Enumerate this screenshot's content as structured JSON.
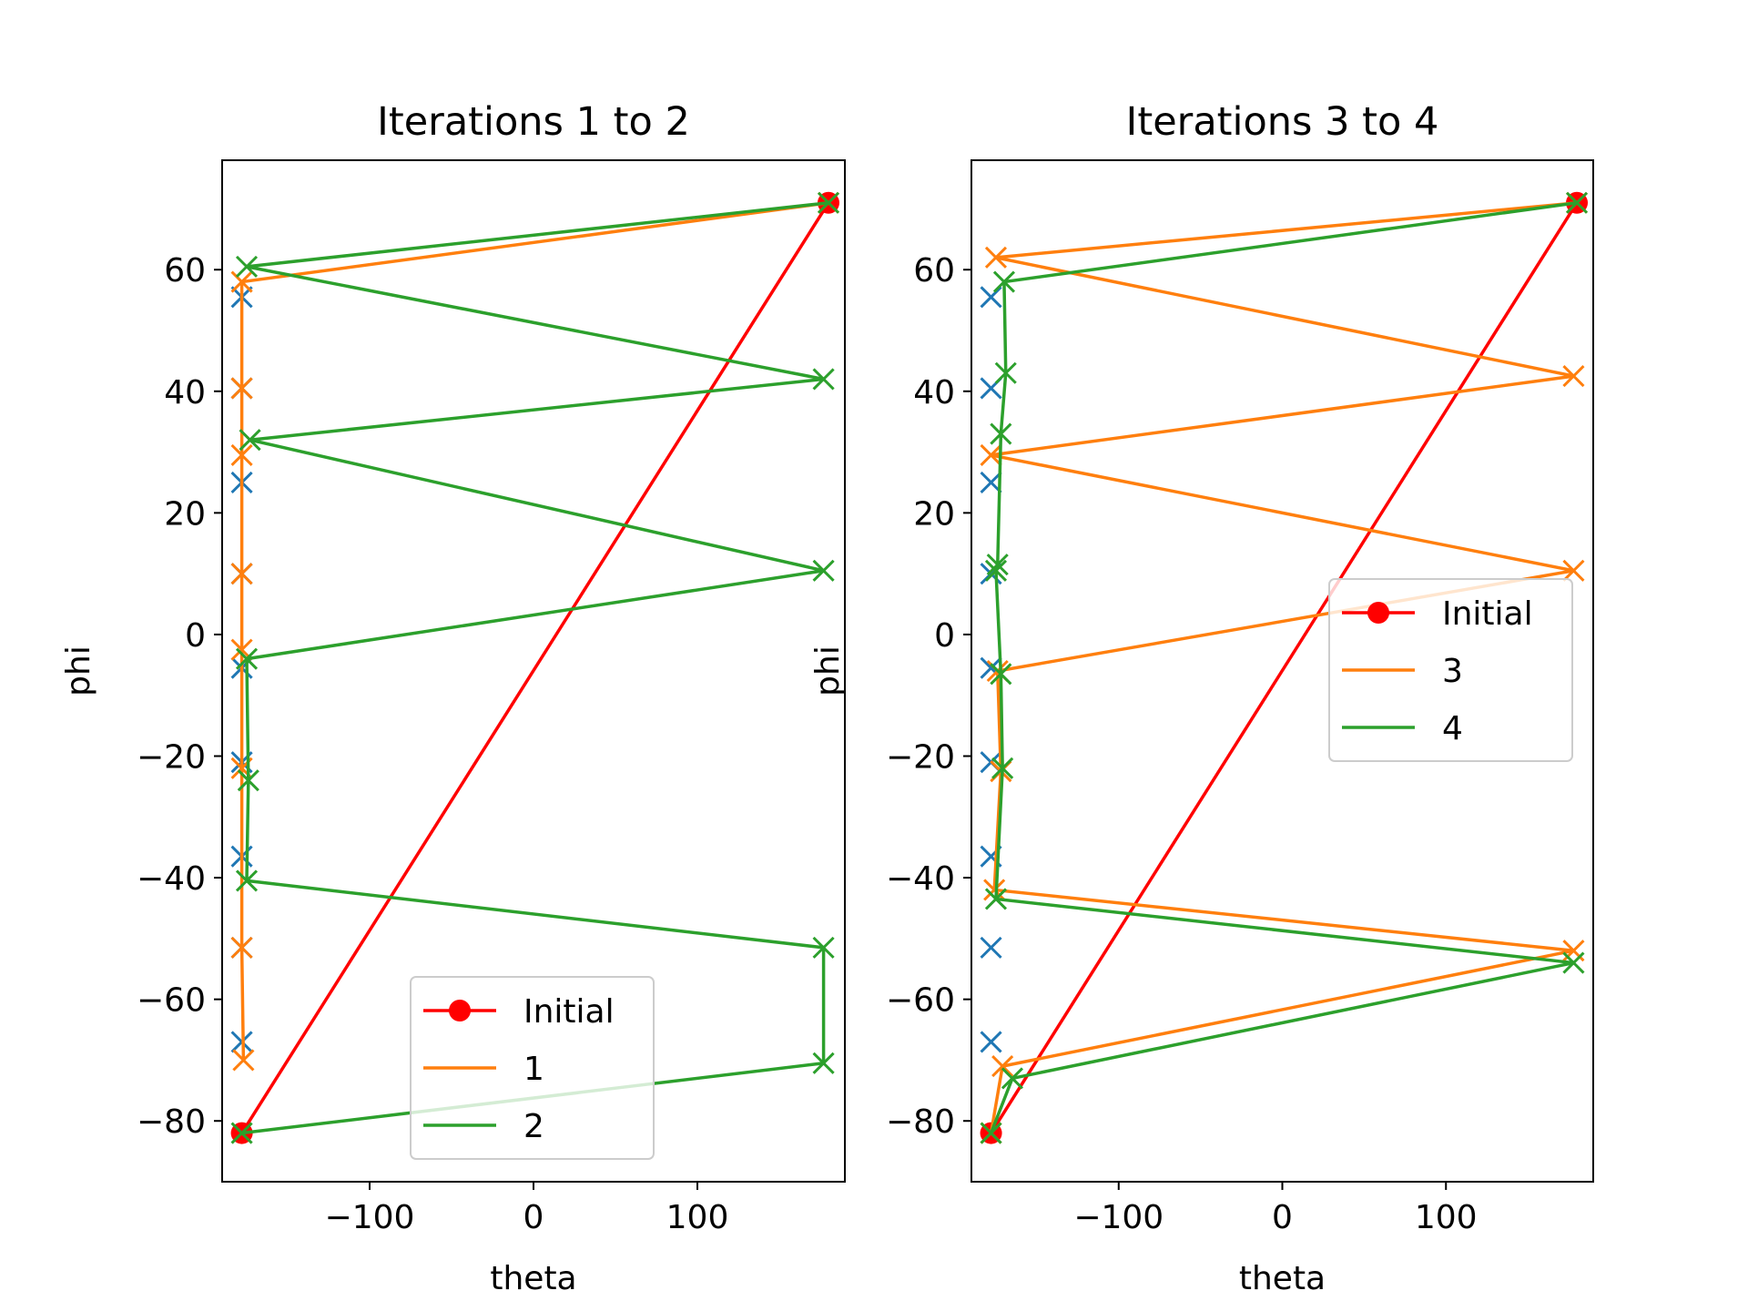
{
  "chart_data": [
    {
      "type": "line",
      "title": "Iterations 1 to 2",
      "xlabel": "theta",
      "ylabel": "phi",
      "xlim": [
        -190,
        190
      ],
      "ylim": [
        -90,
        78
      ],
      "xticks": [
        -100,
        0,
        100
      ],
      "xtick_labels": [
        "−100",
        "0",
        "100"
      ],
      "yticks": [
        -80,
        -60,
        -40,
        -20,
        0,
        20,
        40,
        60
      ],
      "ytick_labels": [
        "−80",
        "−60",
        "−40",
        "−20",
        "0",
        "20",
        "40",
        "60"
      ],
      "legend_position": "lower-right",
      "markers_blue": {
        "color": "#1f77b4",
        "points": [
          [
            -178,
            55.5
          ],
          [
            -178,
            40.5
          ],
          [
            -178,
            25
          ],
          [
            -178,
            10
          ],
          [
            -178,
            -5.5
          ],
          [
            -178,
            -21
          ],
          [
            -178,
            -36.5
          ],
          [
            -178,
            -51.5
          ],
          [
            -178,
            -67
          ]
        ]
      },
      "series": [
        {
          "name": "Initial",
          "color": "#ff0000",
          "marker": "circle",
          "points": [
            [
              -178,
              -82
            ],
            [
              180,
              71
            ]
          ]
        },
        {
          "name": "1",
          "color": "#ff7f0e",
          "marker": "x",
          "points": [
            [
              180,
              71
            ],
            [
              -178,
              58
            ],
            [
              -178,
              40.5
            ],
            [
              -178,
              29.5
            ],
            [
              -178,
              10
            ],
            [
              -178,
              -2.5
            ],
            [
              -178,
              -22
            ],
            [
              -178,
              -51.5
            ],
            [
              -177,
              -70
            ]
          ]
        },
        {
          "name": "2",
          "color": "#2ca02c",
          "marker": "x",
          "points": [
            [
              180,
              71
            ],
            [
              -175,
              60.5
            ],
            [
              177,
              42
            ],
            [
              -173,
              32
            ],
            [
              177,
              10.5
            ],
            [
              -175,
              -4
            ],
            [
              -174,
              -24
            ],
            [
              -175,
              -40.5
            ],
            [
              177,
              -51.5
            ],
            [
              177,
              -70.5
            ],
            [
              -178,
              -82
            ]
          ]
        }
      ]
    },
    {
      "type": "line",
      "title": "Iterations 3 to 4",
      "xlabel": "theta",
      "ylabel": "phi",
      "xlim": [
        -190,
        190
      ],
      "ylim": [
        -90,
        78
      ],
      "xticks": [
        -100,
        0,
        100
      ],
      "xtick_labels": [
        "−100",
        "0",
        "100"
      ],
      "yticks": [
        -80,
        -60,
        -40,
        -20,
        0,
        20,
        40,
        60
      ],
      "ytick_labels": [
        "−80",
        "−60",
        "−40",
        "−20",
        "0",
        "20",
        "40",
        "60"
      ],
      "legend_position": "center-right",
      "markers_blue": {
        "color": "#1f77b4",
        "points": [
          [
            -178,
            55.5
          ],
          [
            -178,
            40.5
          ],
          [
            -178,
            25
          ],
          [
            -178,
            10
          ],
          [
            -178,
            -5.5
          ],
          [
            -178,
            -21
          ],
          [
            -178,
            -36.5
          ],
          [
            -178,
            -51.5
          ],
          [
            -178,
            -67
          ]
        ]
      },
      "series": [
        {
          "name": "Initial",
          "color": "#ff0000",
          "marker": "circle",
          "points": [
            [
              -178,
              -82
            ],
            [
              180,
              71
            ]
          ]
        },
        {
          "name": "3",
          "color": "#ff7f0e",
          "marker": "x",
          "points": [
            [
              180,
              71
            ],
            [
              -175,
              62
            ],
            [
              178,
              42.5
            ],
            [
              -178,
              29.5
            ],
            [
              178,
              10.5
            ],
            [
              -174,
              -6
            ],
            [
              -172,
              -22.5
            ],
            [
              -176,
              -42
            ],
            [
              178,
              -52
            ],
            [
              -171,
              -71
            ],
            [
              -178,
              -82
            ]
          ]
        },
        {
          "name": "4",
          "color": "#2ca02c",
          "marker": "x",
          "points": [
            [
              180,
              71
            ],
            [
              -170,
              58
            ],
            [
              -169,
              43
            ],
            [
              -172,
              33
            ],
            [
              -174,
              11.5
            ],
            [
              -175,
              10.5
            ],
            [
              -172,
              -6.5
            ],
            [
              -171,
              -22
            ],
            [
              -175,
              -43.5
            ],
            [
              178,
              -54
            ],
            [
              -165,
              -73
            ],
            [
              -178,
              -82
            ]
          ]
        }
      ]
    }
  ]
}
